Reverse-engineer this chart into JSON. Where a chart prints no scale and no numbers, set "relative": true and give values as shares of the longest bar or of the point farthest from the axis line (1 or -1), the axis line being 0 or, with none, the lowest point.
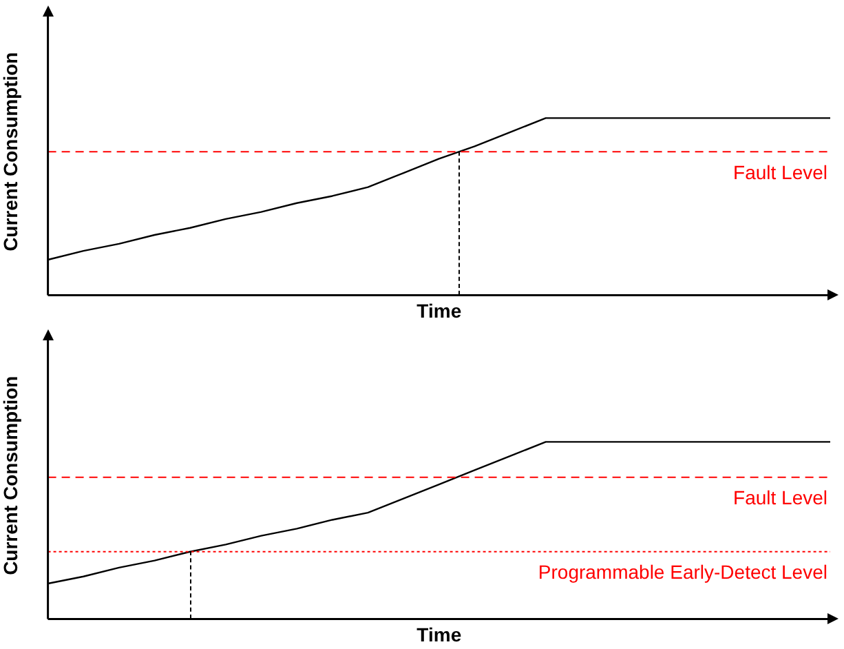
{
  "chart_data": [
    {
      "type": "line",
      "relative": true,
      "xlabel": "Time",
      "ylabel": "Current Consumption",
      "tick_labels": false,
      "grid": false,
      "legend": false,
      "categories": [
        null,
        null,
        null,
        null,
        null,
        null,
        null,
        null,
        null,
        null,
        null,
        null,
        null,
        null,
        null,
        null,
        null,
        null,
        null,
        null,
        null,
        null,
        null
      ],
      "series": [
        {
          "color": "#000000",
          "values": [
            0.2,
            0.25,
            0.29,
            0.34,
            0.38,
            0.43,
            0.47,
            0.52,
            0.56,
            0.61,
            0.69,
            0.77,
            0.84,
            0.92,
            1,
            1,
            1,
            1,
            1,
            1,
            1,
            1,
            1
          ]
        }
      ],
      "ref_lines": [
        {
          "axis": "y",
          "value": 0.81,
          "label": "Fault Level",
          "color": "#ff0000",
          "line_style": "dashed"
        }
      ]
    },
    {
      "type": "line",
      "relative": true,
      "xlabel": "Time",
      "ylabel": "Current Consumption",
      "tick_labels": false,
      "grid": false,
      "legend": false,
      "categories": [
        null,
        null,
        null,
        null,
        null,
        null,
        null,
        null,
        null,
        null,
        null,
        null,
        null,
        null,
        null,
        null,
        null,
        null,
        null,
        null,
        null,
        null,
        null
      ],
      "series": [
        {
          "color": "#000000",
          "values": [
            0.2,
            0.24,
            0.29,
            0.33,
            0.38,
            0.42,
            0.47,
            0.51,
            0.56,
            0.6,
            0.68,
            0.76,
            0.84,
            0.92,
            1,
            1,
            1,
            1,
            1,
            1,
            1,
            1,
            1
          ]
        }
      ],
      "ref_lines": [
        {
          "axis": "y",
          "value": 0.8,
          "label": "Fault Level",
          "color": "#ff0000",
          "line_style": "dashed"
        },
        {
          "axis": "y",
          "value": 0.38,
          "label": "Programmable Early-Detect Level",
          "color": "#ff0000",
          "line_style": "dotted"
        }
      ]
    }
  ]
}
